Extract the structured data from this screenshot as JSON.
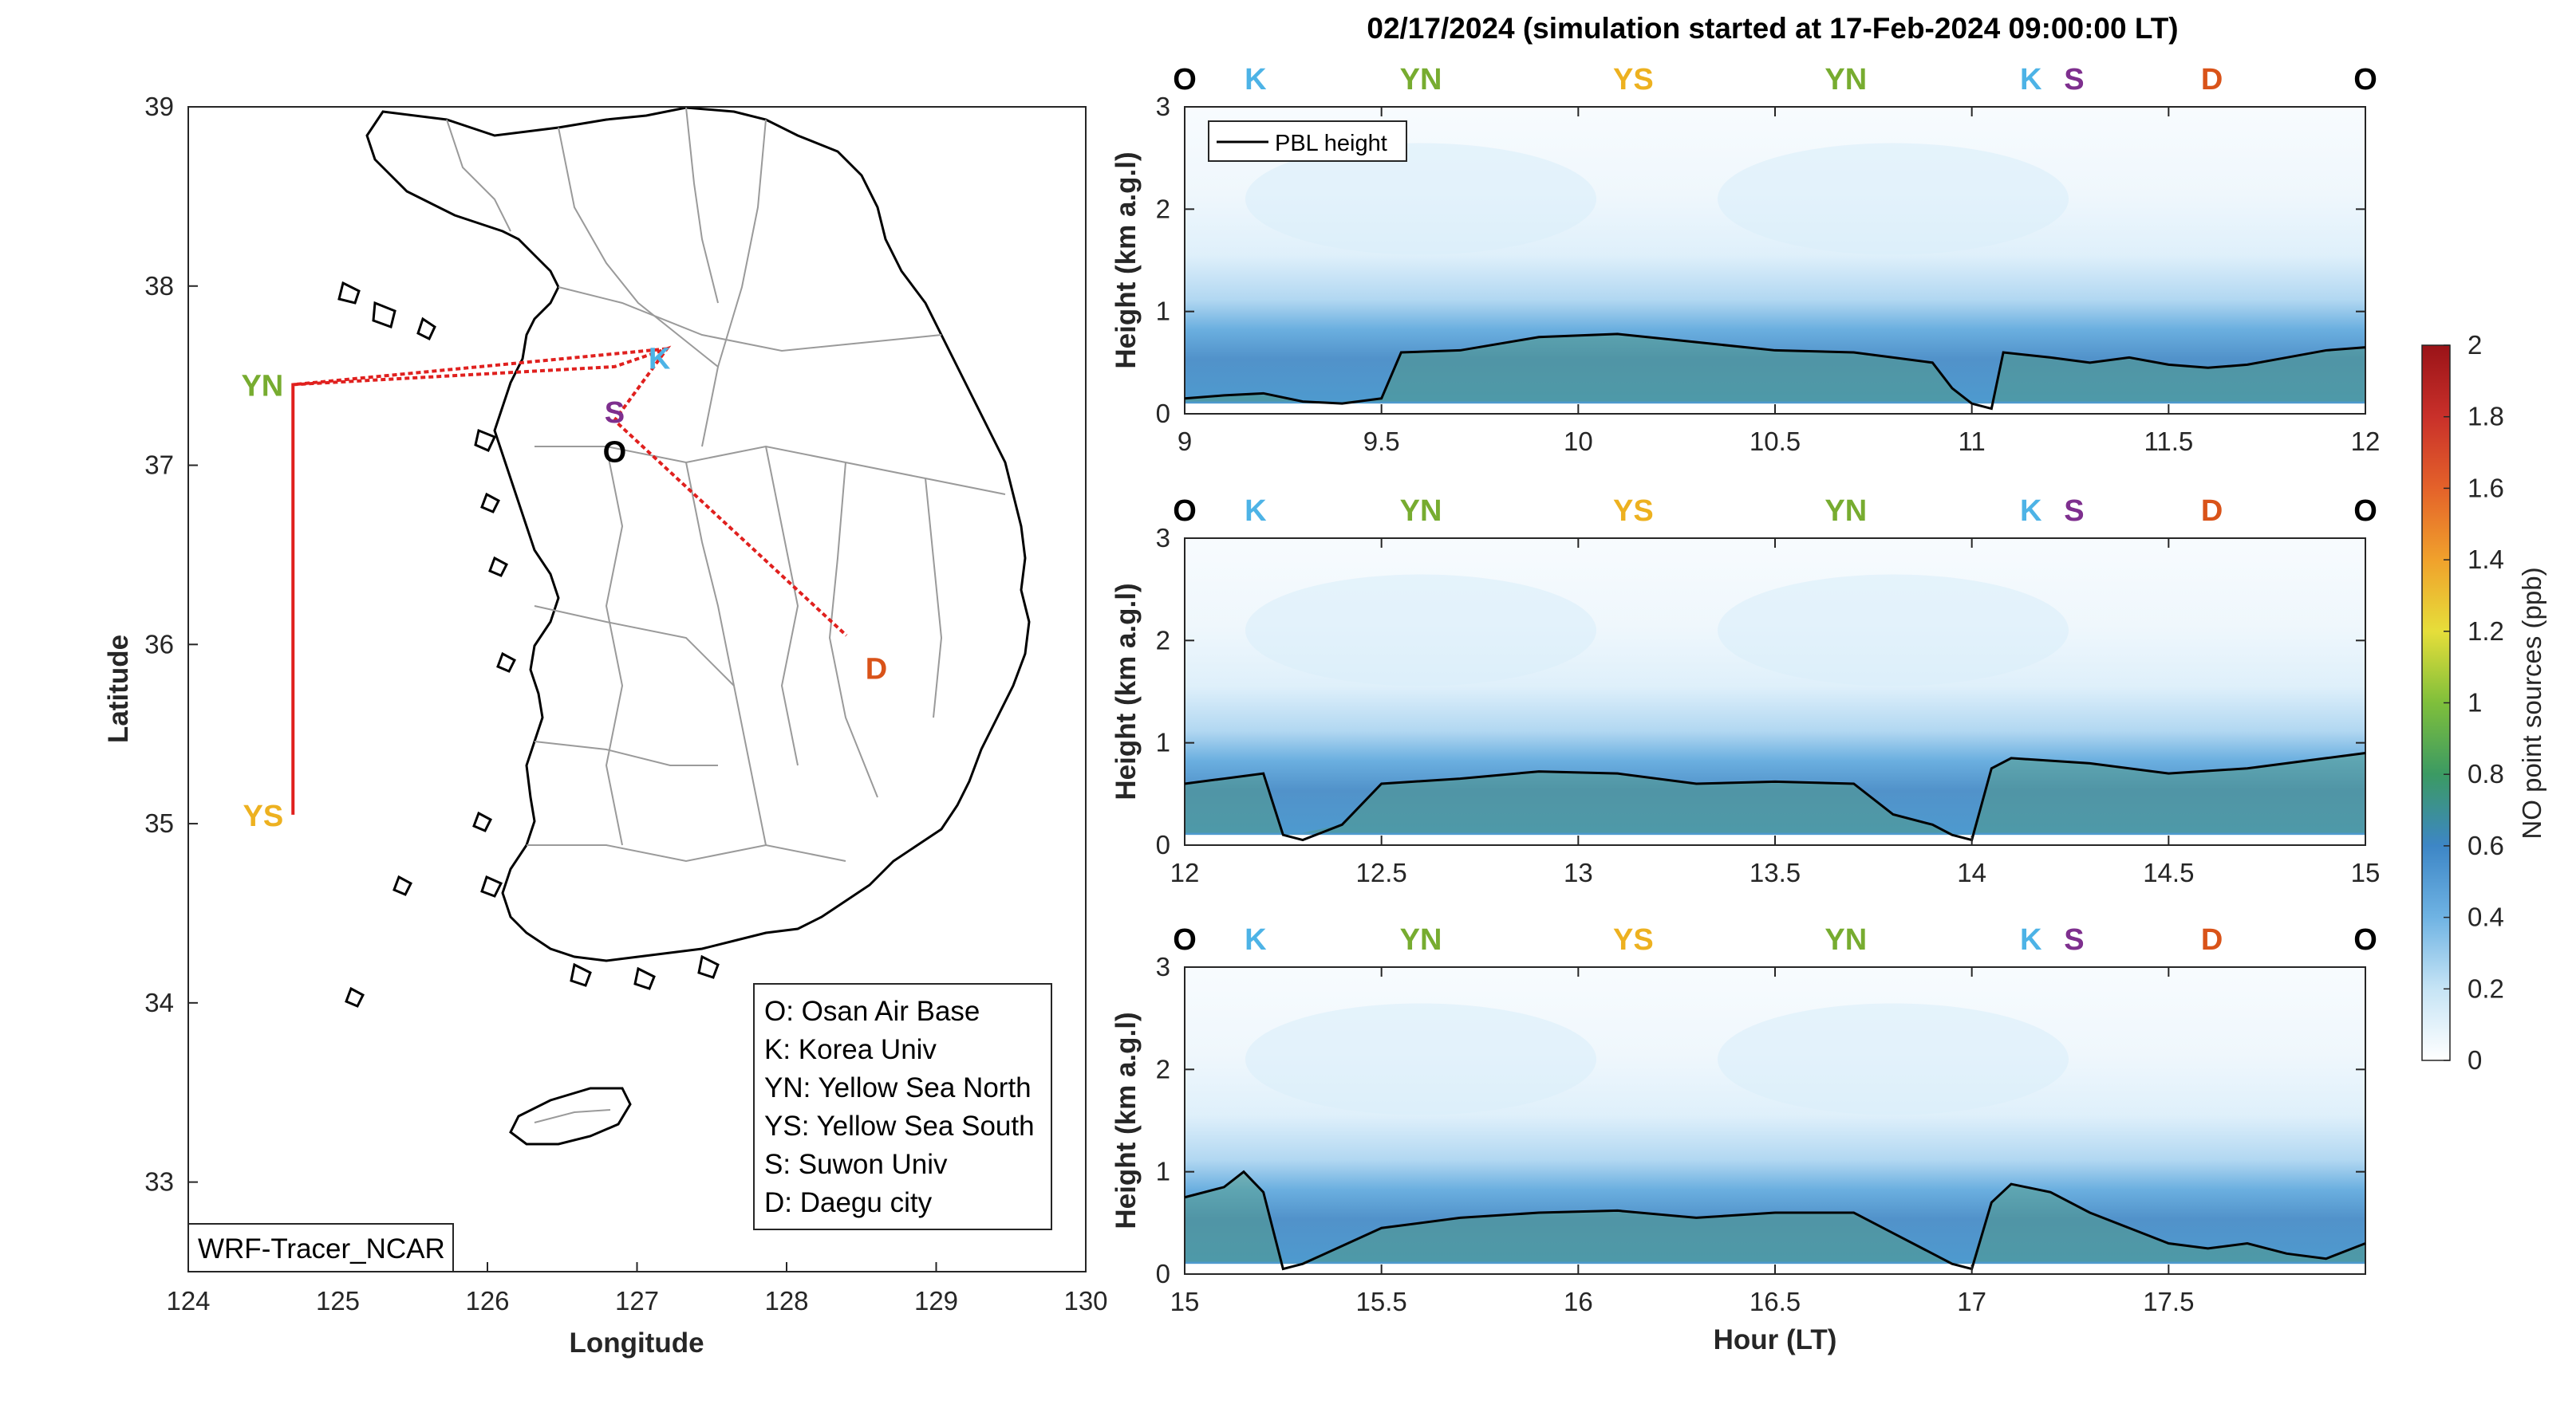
{
  "title": "02/17/2024 (simulation started at 17-Feb-2024 09:00:00 LT)",
  "colors": {
    "O": "#000000",
    "K": "#4db3e6",
    "YN": "#77ac30",
    "YS": "#edb120",
    "S": "#7e2f8e",
    "D": "#d95319",
    "route": "#e0201e",
    "pbl": "#000000"
  },
  "map": {
    "xlabel": "Longitude",
    "ylabel": "Latitude",
    "xlim": [
      124,
      130
    ],
    "ylim": [
      32.5,
      39
    ],
    "xticks": [
      "124",
      "125",
      "126",
      "127",
      "128",
      "129",
      "130"
    ],
    "yticks": [
      "33",
      "34",
      "35",
      "36",
      "37",
      "38",
      "39"
    ],
    "sites": [
      {
        "code": "K",
        "lon": 127.15,
        "lat": 37.6
      },
      {
        "code": "S",
        "lon": 126.85,
        "lat": 37.3
      },
      {
        "code": "O",
        "lon": 126.85,
        "lat": 37.08
      },
      {
        "code": "YN",
        "lon": 124.7,
        "lat": 37.45
      },
      {
        "code": "YS",
        "lon": 124.7,
        "lat": 35.05
      },
      {
        "code": "D",
        "lon": 128.6,
        "lat": 35.87
      }
    ],
    "route_lon": [
      127.2,
      124.7,
      124.7,
      124.7,
      126.85,
      127.2,
      126.85,
      128.4
    ],
    "route_lat": [
      37.65,
      37.45,
      35.05,
      37.45,
      37.55,
      37.65,
      37.25,
      36.05
    ],
    "legend": [
      "O: Osan Air Base",
      "K: Korea Univ",
      "YN: Yellow Sea North",
      "YS: Yellow Sea South",
      "S: Suwon Univ",
      "D: Daegu city"
    ],
    "model_label": "WRF-Tracer_NCAR"
  },
  "profiles": {
    "ylabel": "Height (km a.g.l)",
    "xlabel": "Hour (LT)",
    "legend_label": "PBL height",
    "yticks": [
      "0",
      "1",
      "2",
      "3"
    ],
    "panels": [
      {
        "xlim": [
          9,
          12
        ],
        "xticks": [
          "9",
          "9.5",
          "10",
          "10.5",
          "11",
          "11.5",
          "12"
        ],
        "route_marks": [
          {
            "code": "O",
            "x": 9.0
          },
          {
            "code": "K",
            "x": 9.18
          },
          {
            "code": "YN",
            "x": 9.6
          },
          {
            "code": "YS",
            "x": 10.14
          },
          {
            "code": "YN",
            "x": 10.68
          },
          {
            "code": "K",
            "x": 11.15
          },
          {
            "code": "S",
            "x": 11.26
          },
          {
            "code": "D",
            "x": 11.61
          },
          {
            "code": "O",
            "x": 12.0
          }
        ],
        "pbl_x": [
          9.0,
          9.1,
          9.2,
          9.3,
          9.4,
          9.5,
          9.55,
          9.7,
          9.9,
          10.1,
          10.3,
          10.5,
          10.7,
          10.8,
          10.9,
          10.95,
          11.0,
          11.05,
          11.08,
          11.2,
          11.3,
          11.4,
          11.5,
          11.6,
          11.7,
          11.8,
          11.9,
          12.0
        ],
        "pbl_y": [
          0.15,
          0.18,
          0.2,
          0.12,
          0.1,
          0.15,
          0.6,
          0.62,
          0.75,
          0.78,
          0.7,
          0.62,
          0.6,
          0.55,
          0.5,
          0.25,
          0.1,
          0.05,
          0.6,
          0.55,
          0.5,
          0.55,
          0.48,
          0.45,
          0.48,
          0.55,
          0.62,
          0.65
        ]
      },
      {
        "xlim": [
          12,
          15
        ],
        "xticks": [
          "12",
          "12.5",
          "13",
          "13.5",
          "14",
          "14.5",
          "15"
        ],
        "route_marks": [
          {
            "code": "O",
            "x": 12.0
          },
          {
            "code": "K",
            "x": 12.18
          },
          {
            "code": "YN",
            "x": 12.6
          },
          {
            "code": "YS",
            "x": 13.14
          },
          {
            "code": "YN",
            "x": 13.68
          },
          {
            "code": "K",
            "x": 14.15
          },
          {
            "code": "S",
            "x": 14.26
          },
          {
            "code": "D",
            "x": 14.61
          },
          {
            "code": "O",
            "x": 15.0
          }
        ],
        "pbl_x": [
          12.0,
          12.1,
          12.2,
          12.25,
          12.3,
          12.4,
          12.5,
          12.7,
          12.9,
          13.1,
          13.3,
          13.5,
          13.7,
          13.8,
          13.9,
          13.95,
          14.0,
          14.05,
          14.1,
          14.3,
          14.5,
          14.7,
          14.9,
          15.0
        ],
        "pbl_y": [
          0.6,
          0.65,
          0.7,
          0.1,
          0.05,
          0.2,
          0.6,
          0.65,
          0.72,
          0.7,
          0.6,
          0.62,
          0.6,
          0.3,
          0.2,
          0.1,
          0.05,
          0.75,
          0.85,
          0.8,
          0.7,
          0.75,
          0.85,
          0.9
        ]
      },
      {
        "xlim": [
          15,
          18
        ],
        "xticks": [
          "15",
          "15.5",
          "16",
          "16.5",
          "17",
          "17.5"
        ],
        "route_marks": [
          {
            "code": "O",
            "x": 15.0
          },
          {
            "code": "K",
            "x": 15.18
          },
          {
            "code": "YN",
            "x": 15.6
          },
          {
            "code": "YS",
            "x": 16.14
          },
          {
            "code": "YN",
            "x": 16.68
          },
          {
            "code": "K",
            "x": 17.15
          },
          {
            "code": "S",
            "x": 17.26
          },
          {
            "code": "D",
            "x": 17.61
          },
          {
            "code": "O",
            "x": 18.0
          }
        ],
        "pbl_x": [
          15.0,
          15.1,
          15.15,
          15.2,
          15.25,
          15.3,
          15.5,
          15.7,
          15.9,
          16.1,
          16.3,
          16.5,
          16.7,
          16.8,
          16.9,
          16.95,
          17.0,
          17.05,
          17.1,
          17.2,
          17.3,
          17.4,
          17.5,
          17.6,
          17.7,
          17.8,
          17.9,
          18.0
        ],
        "pbl_y": [
          0.75,
          0.85,
          1.0,
          0.8,
          0.05,
          0.1,
          0.45,
          0.55,
          0.6,
          0.62,
          0.55,
          0.6,
          0.6,
          0.4,
          0.2,
          0.1,
          0.05,
          0.7,
          0.88,
          0.8,
          0.6,
          0.45,
          0.3,
          0.25,
          0.3,
          0.2,
          0.15,
          0.3
        ]
      }
    ]
  },
  "colorbar": {
    "label": "NO point sources (ppb)",
    "ticks": [
      "0",
      "0.2",
      "0.4",
      "0.6",
      "0.8",
      "1",
      "1.2",
      "1.4",
      "1.6",
      "1.8",
      "2"
    ],
    "range": [
      0,
      2
    ]
  },
  "chart_data": [
    {
      "type": "scatter",
      "title": "",
      "xlabel": "Longitude",
      "ylabel": "Latitude",
      "xlim": [
        124,
        130
      ],
      "ylim": [
        32.5,
        39
      ],
      "points": [
        {
          "label": "K",
          "x": 127.15,
          "y": 37.6
        },
        {
          "label": "S",
          "x": 126.85,
          "y": 37.3
        },
        {
          "label": "O",
          "x": 126.85,
          "y": 37.08
        },
        {
          "label": "YN",
          "x": 124.7,
          "y": 37.45
        },
        {
          "label": "YS",
          "x": 124.7,
          "y": 35.05
        },
        {
          "label": "D",
          "x": 128.6,
          "y": 35.87
        }
      ]
    },
    {
      "type": "heatmap",
      "title": "02/17/2024 (simulation started at 17-Feb-2024 09:00:00 LT)",
      "xlabel": "Hour (LT)",
      "ylabel": "Height (km a.g.l)",
      "ylim": [
        0,
        3
      ],
      "xlim": [
        9,
        18
      ],
      "colorbar_label": "NO point sources (ppb)",
      "colorbar_range": [
        0,
        2
      ],
      "series": [
        {
          "name": "PBL height"
        }
      ]
    }
  ]
}
